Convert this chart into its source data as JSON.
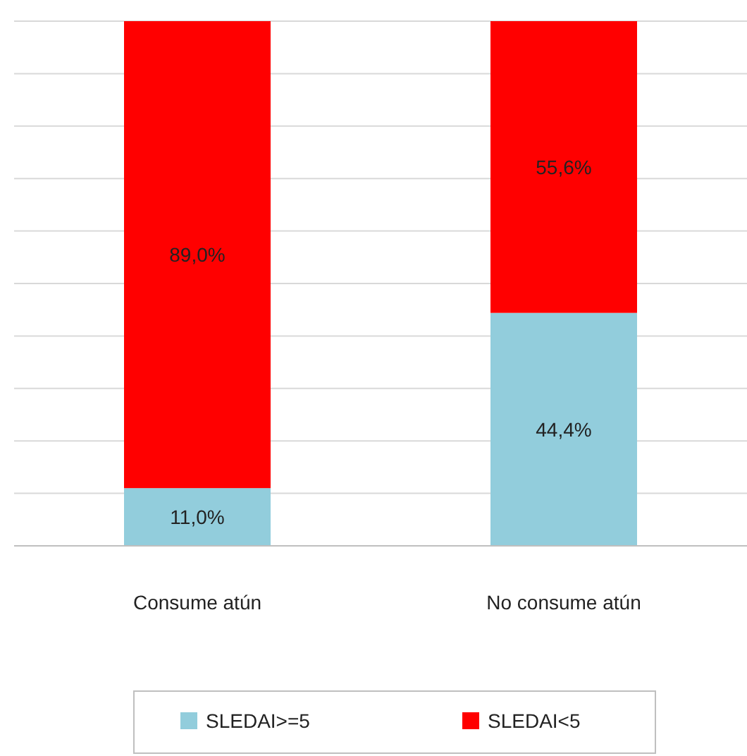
{
  "chart_data": {
    "type": "bar",
    "stacked": true,
    "categories": [
      "Consume atún",
      "No consume atún"
    ],
    "series": [
      {
        "name": "SLEDAI>=5",
        "color": "#92cddc",
        "values": [
          11.0,
          44.4
        ],
        "value_labels": [
          "11,0%",
          "44,4%"
        ]
      },
      {
        "name": "SLEDAI<5",
        "color": "#ff0000",
        "values": [
          89.0,
          55.6
        ],
        "value_labels": [
          "89,0%",
          "55,6%"
        ]
      }
    ],
    "ylim": [
      0,
      100
    ],
    "yticks": [
      {
        "value": 0,
        "label": null
      },
      {
        "value": 10,
        "label": null
      },
      {
        "value": 20,
        "label": null
      },
      {
        "value": 30,
        "label": null
      },
      {
        "value": 40,
        "label": null
      },
      {
        "value": 50,
        "label": null
      },
      {
        "value": 60,
        "label": null
      },
      {
        "value": 70,
        "label": null
      },
      {
        "value": 80,
        "label": null
      },
      {
        "value": 90,
        "label": null
      },
      {
        "value": 100,
        "label": null
      }
    ],
    "tick_labels": "x",
    "grid": "y",
    "legend": "bottom"
  }
}
